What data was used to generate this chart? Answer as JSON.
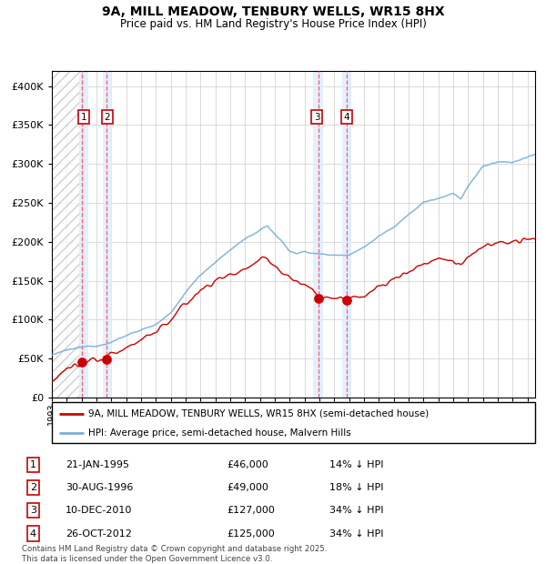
{
  "title": "9A, MILL MEADOW, TENBURY WELLS, WR15 8HX",
  "subtitle": "Price paid vs. HM Land Registry's House Price Index (HPI)",
  "legend_line1": "9A, MILL MEADOW, TENBURY WELLS, WR15 8HX (semi-detached house)",
  "legend_line2": "HPI: Average price, semi-detached house, Malvern Hills",
  "footer": "Contains HM Land Registry data © Crown copyright and database right 2025.\nThis data is licensed under the Open Government Licence v3.0.",
  "sale_points": [
    {
      "num": 1,
      "date": "21-JAN-1995",
      "price": 46000,
      "pct": "14% ↓ HPI",
      "x_year": 1995.05
    },
    {
      "num": 2,
      "date": "30-AUG-1996",
      "price": 49000,
      "pct": "18% ↓ HPI",
      "x_year": 1996.66
    },
    {
      "num": 3,
      "date": "10-DEC-2010",
      "price": 127000,
      "pct": "34% ↓ HPI",
      "x_year": 2010.94
    },
    {
      "num": 4,
      "date": "26-OCT-2012",
      "price": 125000,
      "pct": "34% ↓ HPI",
      "x_year": 2012.82
    }
  ],
  "hpi_color": "#7aaed6",
  "price_color": "#cc0000",
  "shade_color": "#ddeeff",
  "dashed_color": "#ff5555",
  "label_box_color": "#cc0000",
  "ylim": [
    0,
    420000
  ],
  "xlim_start": 1993.0,
  "xlim_end": 2025.5,
  "hatch_end": 1994.9
}
